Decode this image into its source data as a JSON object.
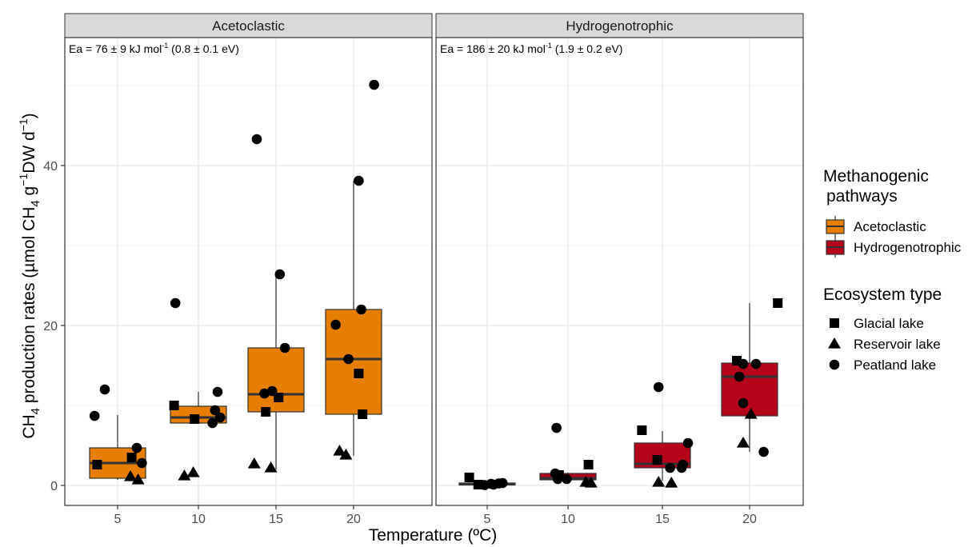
{
  "chart_data": {
    "type": "box",
    "facet_variable": "Methanogenic pathway",
    "x_categories": [
      5,
      10,
      15,
      20
    ],
    "xlabel": "Temperature (ºC)",
    "ylabel": {
      "prefix": "CH",
      "sub": "4",
      "middle": " production rates (µmol CH",
      "sub2": "4",
      "g_text": " g",
      "sup1": "−1",
      "dw_text": "DW d",
      "sup2": "−1",
      "suffix": ")"
    },
    "ylim": [
      -2.5,
      56
    ],
    "yticks": [
      0,
      20,
      40
    ],
    "grid": true,
    "panels": [
      {
        "strip": "Acetoclastic",
        "annotation": {
          "prefix": "Ea = 76 ± 9 kJ mol",
          "sup": "-1",
          "suffix": " (0.8 ± 0.1 eV)"
        },
        "color": "#E67E00",
        "boxes": [
          {
            "x": 5,
            "q1": 0.9,
            "median": 2.8,
            "q3": 4.7,
            "whisker_low": 0.7,
            "whisker_high": 8.8
          },
          {
            "x": 10,
            "q1": 7.8,
            "median": 8.5,
            "q3": 9.9,
            "whisker_low": 7.8,
            "whisker_high": 11.7
          },
          {
            "x": 15,
            "q1": 9.2,
            "median": 11.4,
            "q3": 17.2,
            "whisker_low": 2.0,
            "whisker_high": 26.4
          },
          {
            "x": 20,
            "q1": 8.9,
            "median": 15.8,
            "q3": 22.0,
            "whisker_low": 3.7,
            "whisker_high": 38.1
          }
        ],
        "points": [
          {
            "x": 5,
            "dx": -1.8,
            "y": 8.7,
            "eco": "Peatland lake"
          },
          {
            "x": 5,
            "dx": -1.0,
            "y": 12.0,
            "eco": "Peatland lake"
          },
          {
            "x": 5,
            "dx": 1.5,
            "y": 4.7,
            "eco": "Peatland lake"
          },
          {
            "x": 5,
            "dx": 1.9,
            "y": 2.8,
            "eco": "Peatland lake"
          },
          {
            "x": 5,
            "dx": -1.6,
            "y": 2.6,
            "eco": "Glacial lake"
          },
          {
            "x": 5,
            "dx": 1.1,
            "y": 3.5,
            "eco": "Glacial lake"
          },
          {
            "x": 5,
            "dx": 1.0,
            "y": 1.1,
            "eco": "Reservoir lake"
          },
          {
            "x": 5,
            "dx": 1.6,
            "y": 0.7,
            "eco": "Reservoir lake"
          },
          {
            "x": 10,
            "dx": -1.8,
            "y": 22.8,
            "eco": "Peatland lake"
          },
          {
            "x": 10,
            "dx": 1.5,
            "y": 11.7,
            "eco": "Peatland lake"
          },
          {
            "x": 10,
            "dx": 1.3,
            "y": 9.4,
            "eco": "Peatland lake"
          },
          {
            "x": 10,
            "dx": 1.7,
            "y": 8.5,
            "eco": "Peatland lake"
          },
          {
            "x": 10,
            "dx": 1.1,
            "y": 7.8,
            "eco": "Peatland lake"
          },
          {
            "x": 10,
            "dx": -1.9,
            "y": 10.0,
            "eco": "Glacial lake"
          },
          {
            "x": 10,
            "dx": -0.3,
            "y": 8.3,
            "eco": "Glacial lake"
          },
          {
            "x": 10,
            "dx": -1.1,
            "y": 1.2,
            "eco": "Reservoir lake"
          },
          {
            "x": 10,
            "dx": -0.4,
            "y": 1.6,
            "eco": "Reservoir lake"
          },
          {
            "x": 15,
            "dx": -1.5,
            "y": 43.3,
            "eco": "Peatland lake"
          },
          {
            "x": 15,
            "dx": 0.3,
            "y": 26.4,
            "eco": "Peatland lake"
          },
          {
            "x": 15,
            "dx": 0.7,
            "y": 17.2,
            "eco": "Peatland lake"
          },
          {
            "x": 15,
            "dx": -0.9,
            "y": 11.5,
            "eco": "Peatland lake"
          },
          {
            "x": 15,
            "dx": -0.3,
            "y": 11.8,
            "eco": "Peatland lake"
          },
          {
            "x": 15,
            "dx": -0.8,
            "y": 9.2,
            "eco": "Glacial lake"
          },
          {
            "x": 15,
            "dx": 0.2,
            "y": 11.0,
            "eco": "Glacial lake"
          },
          {
            "x": 15,
            "dx": -1.7,
            "y": 2.7,
            "eco": "Reservoir lake"
          },
          {
            "x": 15,
            "dx": -0.4,
            "y": 2.2,
            "eco": "Reservoir lake"
          },
          {
            "x": 20,
            "dx": 1.6,
            "y": 50.1,
            "eco": "Peatland lake"
          },
          {
            "x": 20,
            "dx": 0.4,
            "y": 38.1,
            "eco": "Peatland lake"
          },
          {
            "x": 20,
            "dx": 0.6,
            "y": 22.0,
            "eco": "Peatland lake"
          },
          {
            "x": 20,
            "dx": -1.4,
            "y": 20.1,
            "eco": "Peatland lake"
          },
          {
            "x": 20,
            "dx": -0.4,
            "y": 15.8,
            "eco": "Peatland lake"
          },
          {
            "x": 20,
            "dx": 0.4,
            "y": 14.0,
            "eco": "Glacial lake"
          },
          {
            "x": 20,
            "dx": 0.7,
            "y": 8.9,
            "eco": "Glacial lake"
          },
          {
            "x": 20,
            "dx": -1.1,
            "y": 4.3,
            "eco": "Reservoir lake"
          },
          {
            "x": 20,
            "dx": -0.6,
            "y": 3.8,
            "eco": "Reservoir lake"
          }
        ]
      },
      {
        "strip": "Hydrogenotrophic",
        "annotation": {
          "prefix": "Ea = 186 ± 20 kJ mol",
          "sup": "-1",
          "suffix": " (1.9 ± 0.2 eV)"
        },
        "color": "#B5051B",
        "boxes": [
          {
            "x": 5,
            "q1": 0.05,
            "median": 0.15,
            "q3": 0.3,
            "whisker_low": 0.0,
            "whisker_high": 0.4
          },
          {
            "x": 10,
            "q1": 0.7,
            "median": 0.9,
            "q3": 1.5,
            "whisker_low": 0.2,
            "whisker_high": 1.6
          },
          {
            "x": 15,
            "q1": 2.2,
            "median": 2.7,
            "q3": 5.3,
            "whisker_low": 0.6,
            "whisker_high": 6.8
          },
          {
            "x": 20,
            "q1": 8.7,
            "median": 13.6,
            "q3": 15.3,
            "whisker_low": 4.2,
            "whisker_high": 22.8
          }
        ],
        "points": [
          {
            "x": 5,
            "dx": -1.4,
            "y": 1.0,
            "eco": "Glacial lake"
          },
          {
            "x": 5,
            "dx": -0.7,
            "y": 0.1,
            "eco": "Glacial lake"
          },
          {
            "x": 5,
            "dx": -0.2,
            "y": 0.05,
            "eco": "Peatland lake"
          },
          {
            "x": 5,
            "dx": 0.3,
            "y": 0.2,
            "eco": "Peatland lake"
          },
          {
            "x": 5,
            "dx": 0.5,
            "y": 0.1,
            "eco": "Peatland lake"
          },
          {
            "x": 5,
            "dx": 0.9,
            "y": 0.25,
            "eco": "Peatland lake"
          },
          {
            "x": 5,
            "dx": 1.2,
            "y": 0.3,
            "eco": "Peatland lake"
          },
          {
            "x": 10,
            "dx": -0.9,
            "y": 7.2,
            "eco": "Peatland lake"
          },
          {
            "x": 10,
            "dx": -1.0,
            "y": 1.5,
            "eco": "Peatland lake"
          },
          {
            "x": 10,
            "dx": -0.8,
            "y": 0.8,
            "eco": "Peatland lake"
          },
          {
            "x": 10,
            "dx": -0.1,
            "y": 0.8,
            "eco": "Peatland lake"
          },
          {
            "x": 10,
            "dx": -0.7,
            "y": 1.3,
            "eco": "Glacial lake"
          },
          {
            "x": 10,
            "dx": 1.6,
            "y": 2.6,
            "eco": "Glacial lake"
          },
          {
            "x": 10,
            "dx": 1.4,
            "y": 0.4,
            "eco": "Reservoir lake"
          },
          {
            "x": 10,
            "dx": 1.8,
            "y": 0.3,
            "eco": "Reservoir lake"
          },
          {
            "x": 15,
            "dx": -0.3,
            "y": 12.3,
            "eco": "Peatland lake"
          },
          {
            "x": 15,
            "dx": 2.0,
            "y": 5.3,
            "eco": "Peatland lake"
          },
          {
            "x": 15,
            "dx": 1.6,
            "y": 2.6,
            "eco": "Peatland lake"
          },
          {
            "x": 15,
            "dx": 1.5,
            "y": 2.2,
            "eco": "Peatland lake"
          },
          {
            "x": 15,
            "dx": 0.6,
            "y": 2.2,
            "eco": "Peatland lake"
          },
          {
            "x": 15,
            "dx": -1.6,
            "y": 6.9,
            "eco": "Glacial lake"
          },
          {
            "x": 15,
            "dx": -0.4,
            "y": 3.2,
            "eco": "Glacial lake"
          },
          {
            "x": 15,
            "dx": -0.3,
            "y": 0.4,
            "eco": "Reservoir lake"
          },
          {
            "x": 15,
            "dx": 0.7,
            "y": 0.3,
            "eco": "Reservoir lake"
          },
          {
            "x": 20,
            "dx": -0.5,
            "y": 15.2,
            "eco": "Peatland lake"
          },
          {
            "x": 20,
            "dx": 0.5,
            "y": 15.2,
            "eco": "Peatland lake"
          },
          {
            "x": 20,
            "dx": -0.8,
            "y": 13.6,
            "eco": "Peatland lake"
          },
          {
            "x": 20,
            "dx": -0.5,
            "y": 10.3,
            "eco": "Peatland lake"
          },
          {
            "x": 20,
            "dx": 1.1,
            "y": 4.2,
            "eco": "Peatland lake"
          },
          {
            "x": 20,
            "dx": -1.0,
            "y": 15.6,
            "eco": "Glacial lake"
          },
          {
            "x": 20,
            "dx": 2.2,
            "y": 22.8,
            "eco": "Glacial lake"
          },
          {
            "x": 20,
            "dx": -0.5,
            "y": 5.3,
            "eco": "Reservoir lake"
          },
          {
            "x": 20,
            "dx": 0.1,
            "y": 8.9,
            "eco": "Reservoir lake"
          }
        ]
      }
    ],
    "legend": {
      "placement": "right",
      "fill": {
        "title_line1": "Methanogenic",
        "title_line2": "pathways",
        "items": [
          {
            "label": "Acetoclastic",
            "color": "#E67E00"
          },
          {
            "label": "Hydrogenotrophic",
            "color": "#B5051B"
          }
        ]
      },
      "shape": {
        "title": "Ecosystem type",
        "items": [
          {
            "label": "Glacial lake",
            "shape": "square"
          },
          {
            "label": "Reservoir lake",
            "shape": "triangle"
          },
          {
            "label": "Peatland lake",
            "shape": "circle"
          }
        ]
      }
    },
    "colors": {
      "strip_fill": "#D9D9D9",
      "grid": "#EBEBEB",
      "border": "#333333",
      "tick_text": "#4D4D4D"
    }
  }
}
